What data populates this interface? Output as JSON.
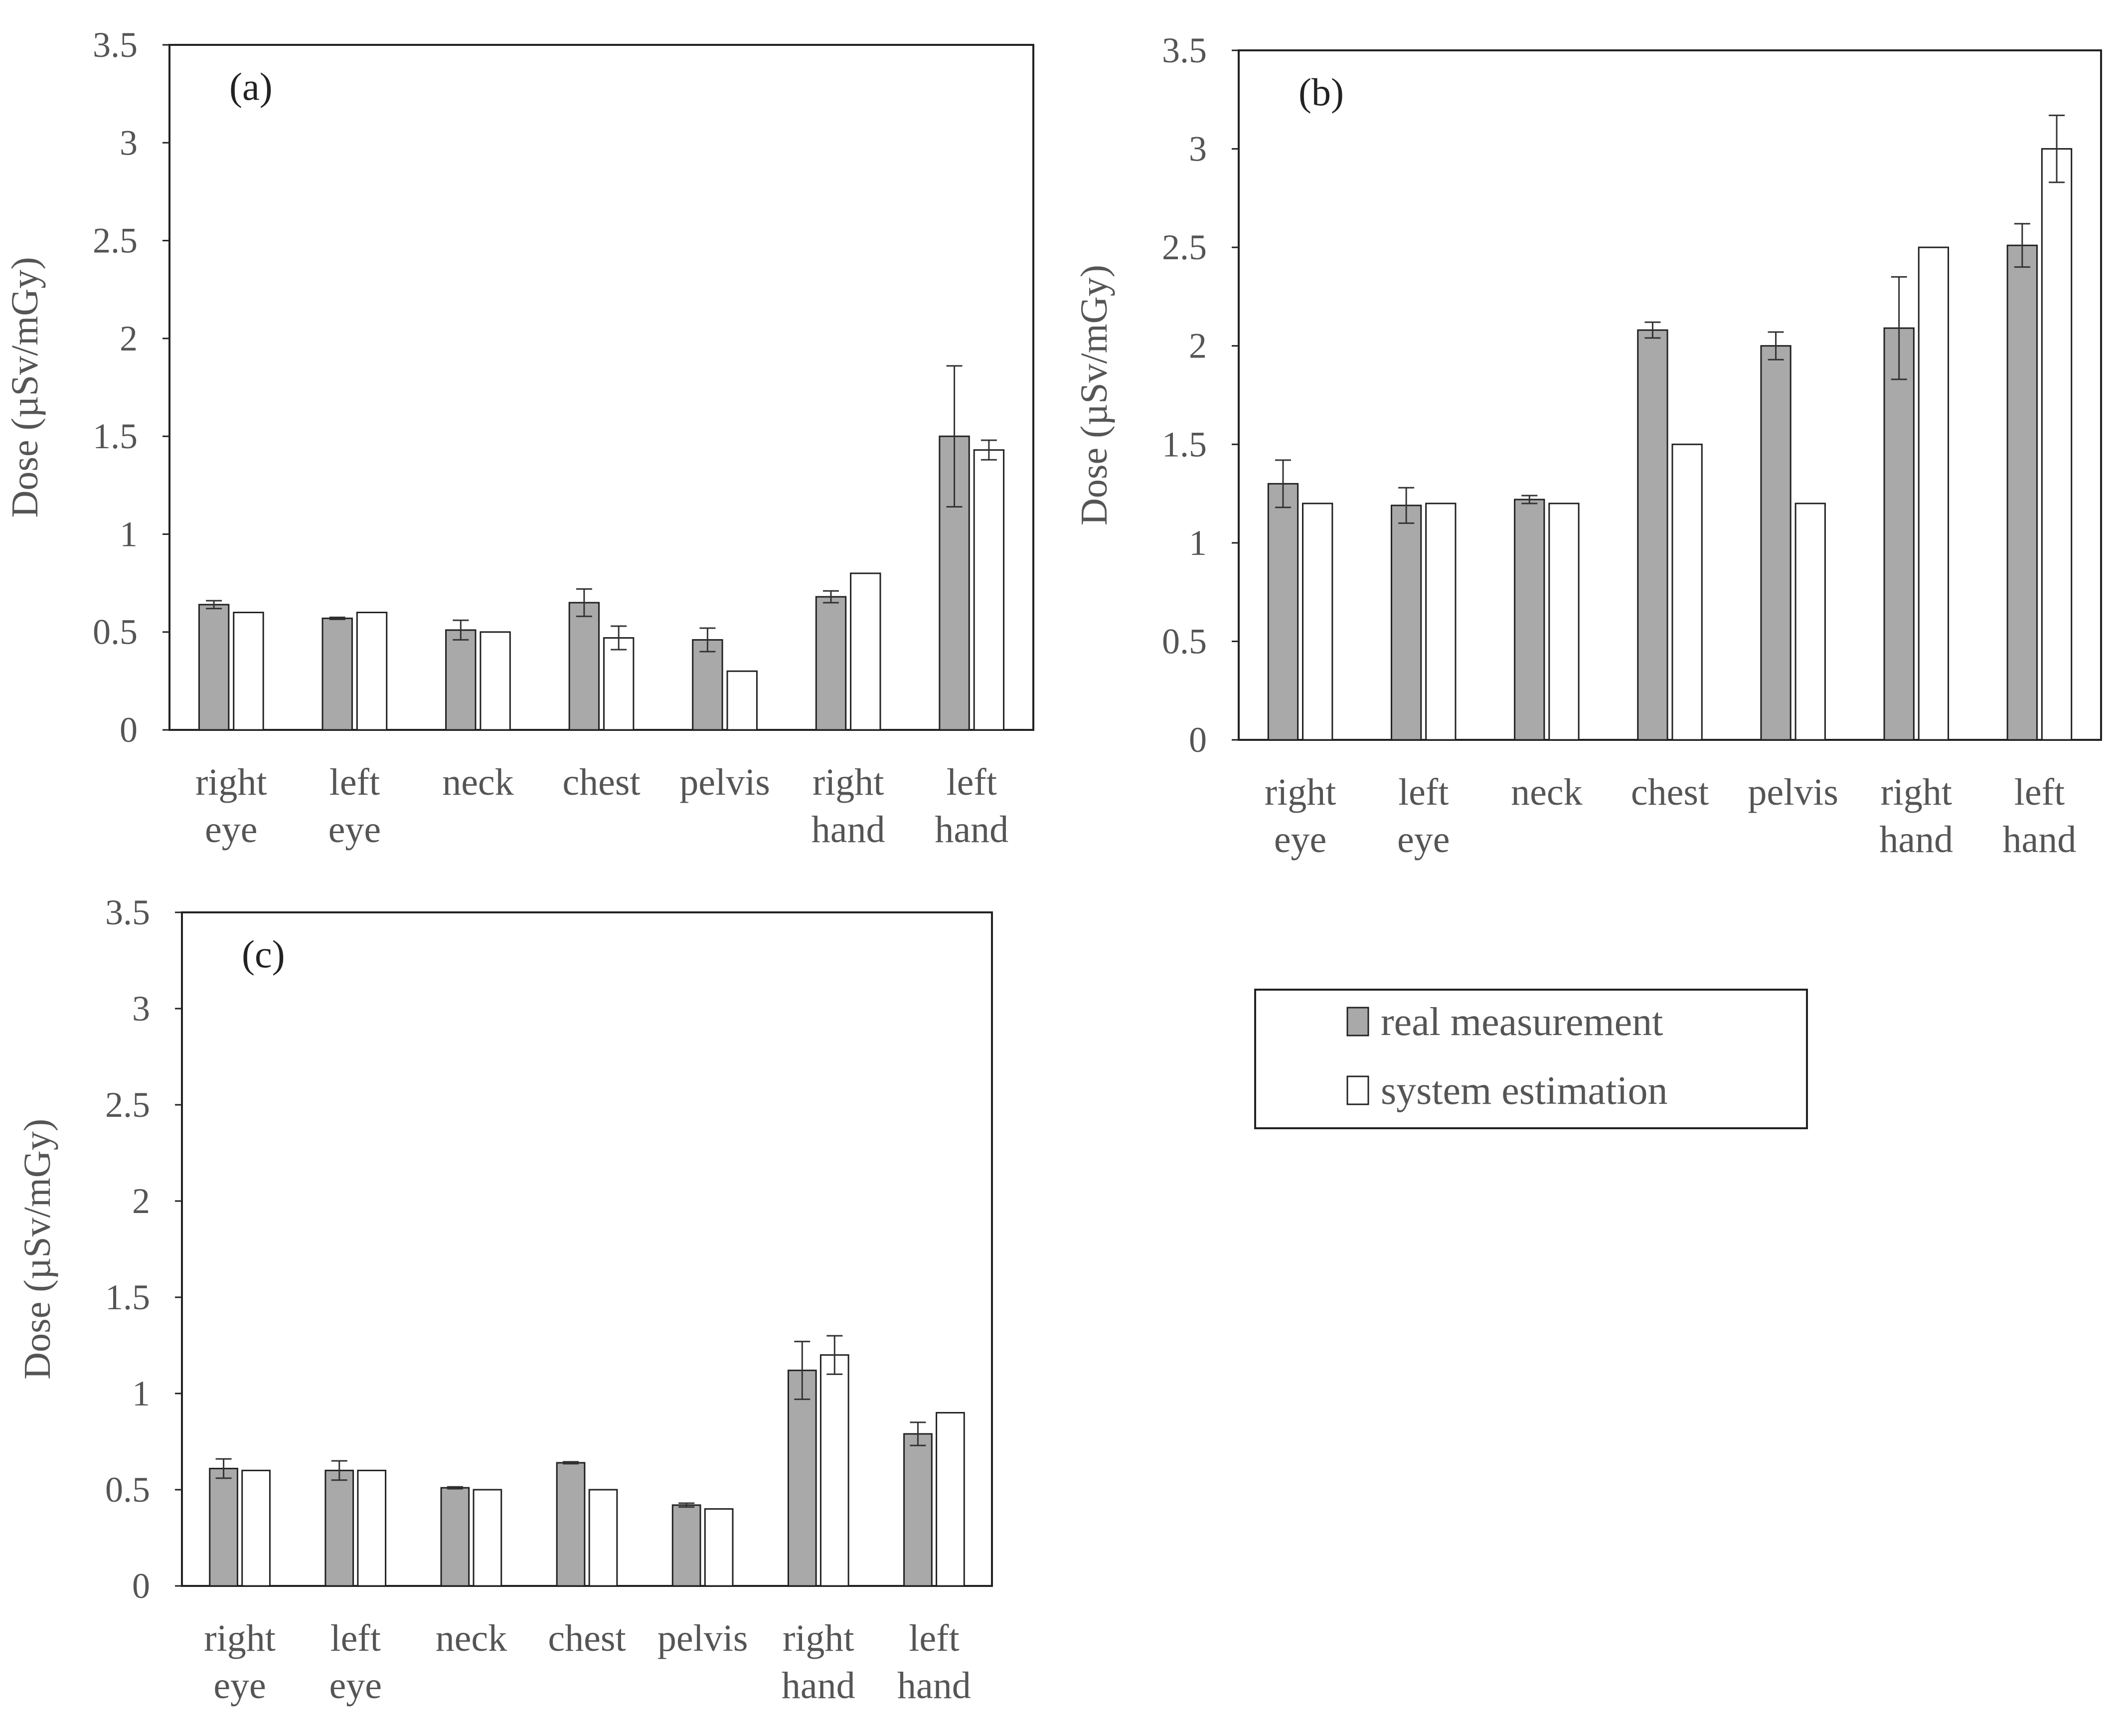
{
  "figure": {
    "legend": {
      "entries": [
        {
          "label": "real measurement",
          "color": "#a9a9a9"
        },
        {
          "label": "system estimation",
          "color": "#ffffff"
        }
      ]
    }
  },
  "chart_data": [
    {
      "type": "bar",
      "panel_label": "(a)",
      "categories": [
        [
          "right",
          "eye"
        ],
        [
          "left",
          "eye"
        ],
        [
          "neck"
        ],
        [
          "chest"
        ],
        [
          "pelvis"
        ],
        [
          "right",
          "hand"
        ],
        [
          "left",
          "hand"
        ]
      ],
      "ylabel": "Dose (µSv/mGy)",
      "ylim": [
        0,
        3.5
      ],
      "yticks": [
        "0",
        "0.5",
        "1",
        "1.5",
        "2",
        "2.5",
        "3",
        "3.5"
      ],
      "ytick_values": [
        0,
        0.5,
        1,
        1.5,
        2,
        2.5,
        3,
        3.5
      ],
      "series": [
        {
          "name": "real measurement",
          "values": [
            0.64,
            0.57,
            0.51,
            0.65,
            0.46,
            0.68,
            1.5
          ],
          "errors": [
            0.02,
            0.005,
            0.05,
            0.07,
            0.06,
            0.03,
            0.36
          ]
        },
        {
          "name": "system estimation",
          "values": [
            0.6,
            0.6,
            0.5,
            0.47,
            0.3,
            0.8,
            1.43
          ],
          "errors": [
            0,
            0,
            0,
            0.06,
            0,
            0,
            0.05
          ]
        }
      ]
    },
    {
      "type": "bar",
      "panel_label": "(b)",
      "categories": [
        [
          "right",
          "eye"
        ],
        [
          "left",
          "eye"
        ],
        [
          "neck"
        ],
        [
          "chest"
        ],
        [
          "pelvis"
        ],
        [
          "right",
          "hand"
        ],
        [
          "left",
          "hand"
        ]
      ],
      "ylabel": "Dose (µSv/mGy)",
      "ylim": [
        0,
        3.5
      ],
      "yticks": [
        "0",
        "0.5",
        "1",
        "1.5",
        "2",
        "2.5",
        "3",
        "3.5"
      ],
      "ytick_values": [
        0,
        0.5,
        1,
        1.5,
        2,
        2.5,
        3,
        3.5
      ],
      "series": [
        {
          "name": "real measurement",
          "values": [
            1.3,
            1.19,
            1.22,
            2.08,
            2.0,
            2.09,
            2.51
          ],
          "errors": [
            0.12,
            0.09,
            0.02,
            0.04,
            0.07,
            0.26,
            0.11
          ]
        },
        {
          "name": "system estimation",
          "values": [
            1.2,
            1.2,
            1.2,
            1.5,
            1.2,
            2.5,
            3.0
          ],
          "errors": [
            0,
            0,
            0,
            0,
            0,
            0,
            0.17
          ]
        }
      ]
    },
    {
      "type": "bar",
      "panel_label": "(c)",
      "categories": [
        [
          "right",
          "eye"
        ],
        [
          "left",
          "eye"
        ],
        [
          "neck"
        ],
        [
          "chest"
        ],
        [
          "pelvis"
        ],
        [
          "right",
          "hand"
        ],
        [
          "left",
          "hand"
        ]
      ],
      "ylabel": "Dose (µSv/mGy)",
      "ylim": [
        0,
        3.5
      ],
      "yticks": [
        "0",
        "0.5",
        "1",
        "1.5",
        "2",
        "2.5",
        "3",
        "3.5"
      ],
      "ytick_values": [
        0,
        0.5,
        1,
        1.5,
        2,
        2.5,
        3,
        3.5
      ],
      "series": [
        {
          "name": "real measurement",
          "values": [
            0.61,
            0.6,
            0.51,
            0.64,
            0.42,
            1.12,
            0.79
          ],
          "errors": [
            0.05,
            0.05,
            0.005,
            0.005,
            0.01,
            0.15,
            0.06
          ]
        },
        {
          "name": "system estimation",
          "values": [
            0.6,
            0.6,
            0.5,
            0.5,
            0.4,
            1.2,
            0.9
          ],
          "errors": [
            0,
            0,
            0,
            0,
            0,
            0.1,
            0
          ]
        }
      ]
    }
  ]
}
